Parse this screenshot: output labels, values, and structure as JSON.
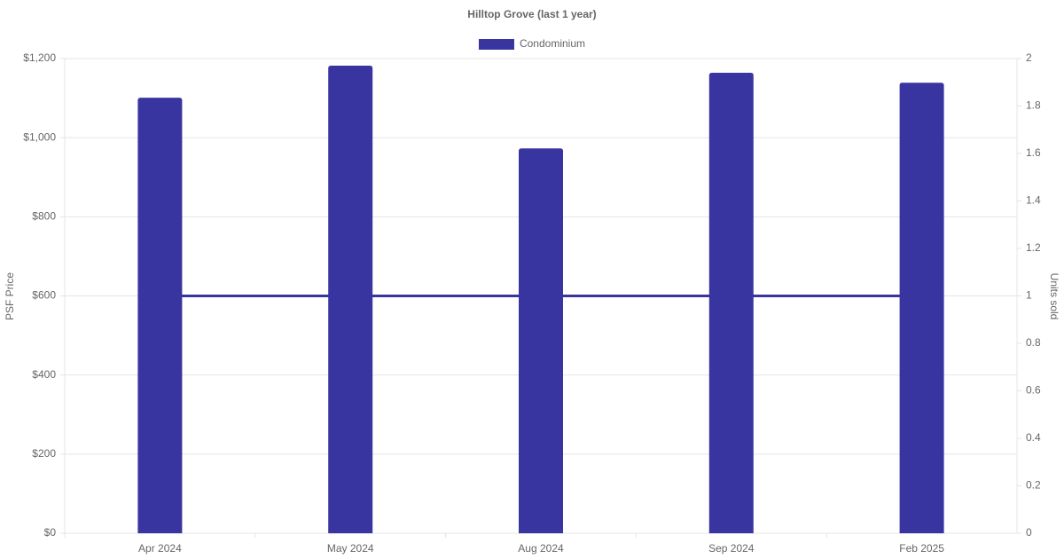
{
  "chart_data": {
    "type": "bar",
    "title": "Hilltop Grove (last 1 year)",
    "categories": [
      "Apr 2024",
      "May 2024",
      "Aug 2024",
      "Sep 2024",
      "Feb 2025"
    ],
    "series": [
      {
        "name": "Condominium",
        "color": "#3935a0",
        "values": [
          1101,
          1182,
          973,
          1164,
          1139
        ]
      },
      {
        "type": "line",
        "color": "#3935a0",
        "axis": "y2",
        "values": [
          1,
          1,
          1,
          1,
          1
        ]
      }
    ],
    "ylabel": "PSF Price",
    "y2label": "Units sold",
    "ylim": [
      0,
      1200
    ],
    "yticks": [
      {
        "value": 0,
        "label": "$0"
      },
      {
        "value": 200,
        "label": "$200"
      },
      {
        "value": 400,
        "label": "$400"
      },
      {
        "value": 600,
        "label": "$600"
      },
      {
        "value": 800,
        "label": "$800"
      },
      {
        "value": 1000,
        "label": "$1,000"
      },
      {
        "value": 1200,
        "label": "$1,200"
      }
    ],
    "y2lim": [
      0,
      2
    ],
    "y2ticks": [
      0,
      0.2,
      0.4,
      0.6,
      0.8,
      1,
      1.2,
      1.4,
      1.6,
      1.8,
      2
    ],
    "grid": true
  }
}
